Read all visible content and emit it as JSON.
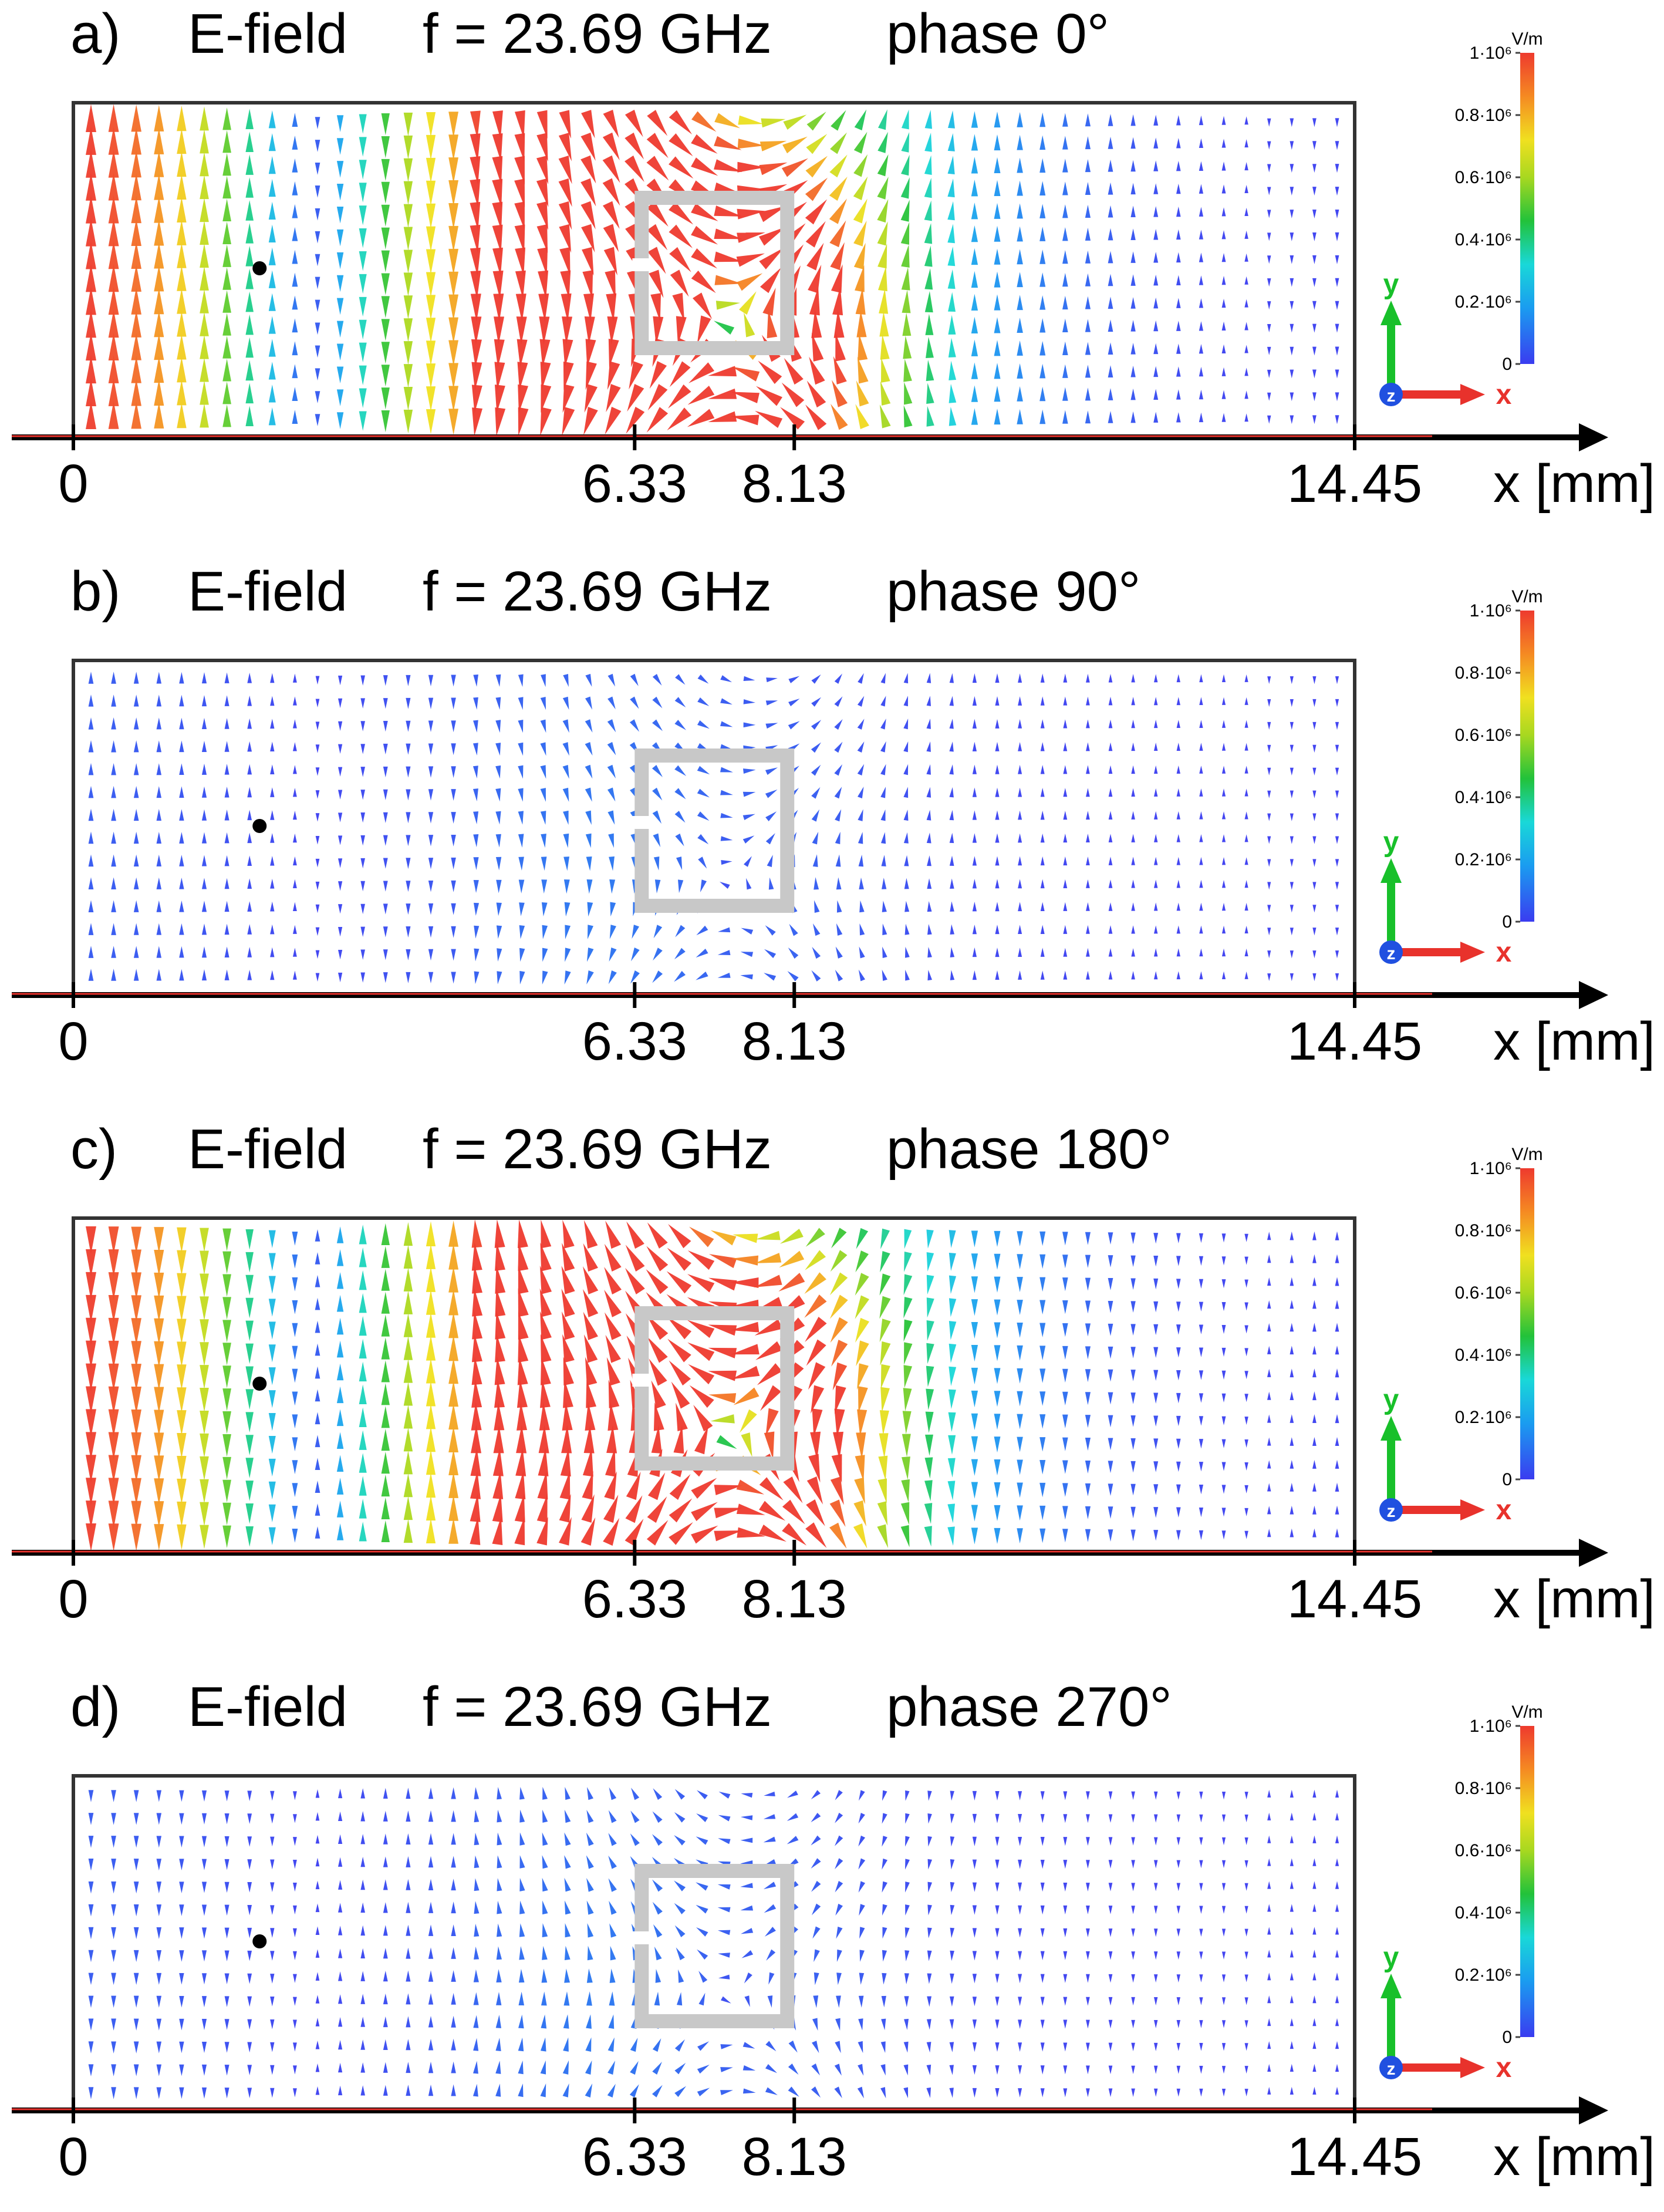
{
  "figure": {
    "unit_label": "V/m",
    "x_axis_label": "x [mm]",
    "colorbar_ticks": [
      "1·10⁶",
      "0.8·10⁶",
      "0.6·10⁶",
      "0.4·10⁶",
      "0.2·10⁶",
      "0"
    ],
    "axis_triad": {
      "y": "y",
      "z": "z",
      "x": "x"
    },
    "colors": {
      "colormap": [
        "#3a3cf0",
        "#1a9cf0",
        "#19d8d8",
        "#22c23a",
        "#a8d820",
        "#f0e020",
        "#f58a22",
        "#ee3a2e"
      ],
      "axis_triad_y": "#18c02a",
      "axis_triad_x": "#e8322c",
      "axis_triad_z": "#2050e0",
      "structure": "#c8c8c8",
      "probe_point": "#000000"
    }
  },
  "chart_data": [
    {
      "type": "vector-field",
      "panel": "a)",
      "quantity": "E-field",
      "frequency": "f = 23.69 GHz",
      "phase": "phase 0°",
      "phase_deg": 0,
      "x_ticks": [
        0,
        6.33,
        8.13,
        14.45
      ],
      "x_tick_labels": [
        "0",
        "6.33",
        "8.13",
        "14.45"
      ],
      "xlim": [
        0,
        14.45
      ],
      "srr_x_range_mm": [
        6.33,
        8.13
      ],
      "probe_x_mm": 2.1,
      "colorbar": {
        "unit": "V/m",
        "range": [
          0,
          1000000
        ],
        "ticks": [
          0,
          200000,
          400000,
          600000,
          800000,
          1000000
        ]
      },
      "field_amplitude_scale": 1
    },
    {
      "type": "vector-field",
      "panel": "b)",
      "quantity": "E-field",
      "frequency": "f = 23.69 GHz",
      "phase": "phase 90°",
      "phase_deg": 90,
      "x_ticks": [
        0,
        6.33,
        8.13,
        14.45
      ],
      "x_tick_labels": [
        "0",
        "6.33",
        "8.13",
        "14.45"
      ],
      "xlim": [
        0,
        14.45
      ],
      "srr_x_range_mm": [
        6.33,
        8.13
      ],
      "probe_x_mm": 2.1,
      "colorbar": {
        "unit": "V/m",
        "range": [
          0,
          1000000
        ],
        "ticks": [
          0,
          200000,
          400000,
          600000,
          800000,
          1000000
        ]
      },
      "field_amplitude_scale": 0.05
    },
    {
      "type": "vector-field",
      "panel": "c)",
      "quantity": "E-field",
      "frequency": "f = 23.69 GHz",
      "phase": "phase 180°",
      "phase_deg": 180,
      "x_ticks": [
        0,
        6.33,
        8.13,
        14.45
      ],
      "x_tick_labels": [
        "0",
        "6.33",
        "8.13",
        "14.45"
      ],
      "xlim": [
        0,
        14.45
      ],
      "srr_x_range_mm": [
        6.33,
        8.13
      ],
      "probe_x_mm": 2.1,
      "colorbar": {
        "unit": "V/m",
        "range": [
          0,
          1000000
        ],
        "ticks": [
          0,
          200000,
          400000,
          600000,
          800000,
          1000000
        ]
      },
      "field_amplitude_scale": -1
    },
    {
      "type": "vector-field",
      "panel": "d)",
      "quantity": "E-field",
      "frequency": "f = 23.69 GHz",
      "phase": "phase 270°",
      "phase_deg": 270,
      "x_ticks": [
        0,
        6.33,
        8.13,
        14.45
      ],
      "x_tick_labels": [
        "0",
        "6.33",
        "8.13",
        "14.45"
      ],
      "xlim": [
        0,
        14.45
      ],
      "srr_x_range_mm": [
        6.33,
        8.13
      ],
      "probe_x_mm": 2.1,
      "colorbar": {
        "unit": "V/m",
        "range": [
          0,
          1000000
        ],
        "ticks": [
          0,
          200000,
          400000,
          600000,
          800000,
          1000000
        ]
      },
      "field_amplitude_scale": -0.05
    }
  ]
}
